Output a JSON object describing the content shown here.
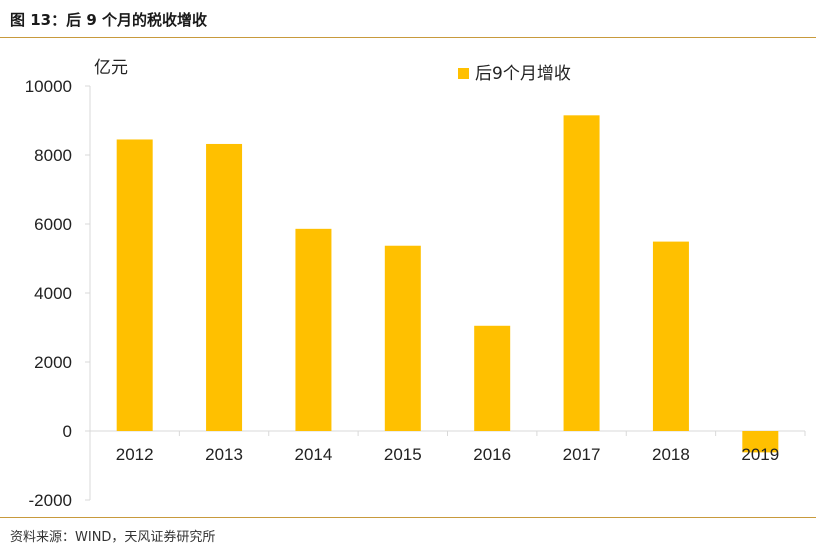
{
  "figure_title": "图 13：后 9 个月的税收增收",
  "source": "资料来源：WIND，天风证券研究所",
  "colors": {
    "bar": "#ffc000",
    "axis": "#d9d9d9",
    "rule": "#c89a3c"
  },
  "chart_data": {
    "type": "bar",
    "categories": [
      "2012",
      "2013",
      "2014",
      "2015",
      "2016",
      "2017",
      "2018",
      "2019"
    ],
    "series": [
      {
        "name": "后9个月增收",
        "values": [
          8450,
          8320,
          5860,
          5370,
          3050,
          9150,
          5490,
          -620
        ]
      }
    ],
    "ylabel": "亿元",
    "ylim": [
      -2000,
      10000
    ],
    "yticks": [
      10000,
      8000,
      6000,
      4000,
      2000,
      0,
      -2000
    ],
    "grid": false,
    "legend_position": "top-right"
  }
}
